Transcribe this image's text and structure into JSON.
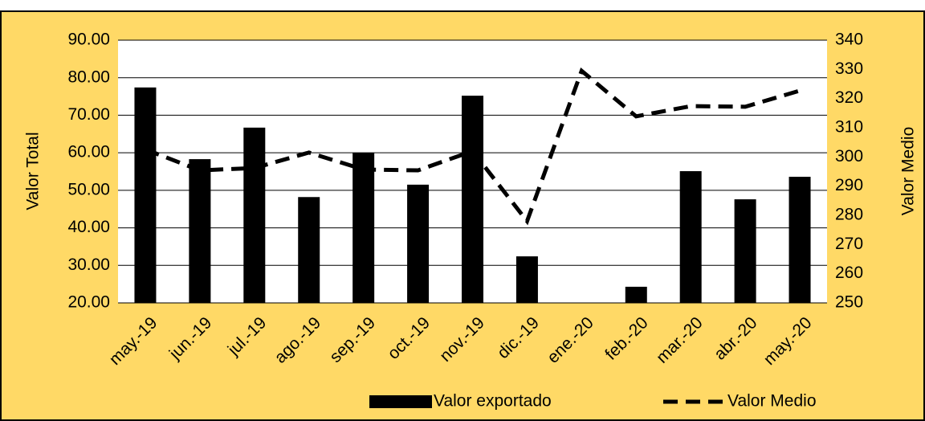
{
  "chart_data": {
    "type": "bar_line",
    "categories": [
      "may.-19",
      "jun.-19",
      "jul.-19",
      "ago.-19",
      "sep.-19",
      "oct.-19",
      "nov.-19",
      "dic.-19",
      "ene.-20",
      "feb.-20",
      "mar.-20",
      "abr.-20",
      "may.-20"
    ],
    "series": [
      {
        "name": "Valor exportado",
        "type": "bar",
        "color": "#000000",
        "values": [
          77.4,
          58.3,
          66.7,
          48.2,
          60.0,
          51.5,
          75.2,
          32.4,
          null,
          24.3,
          55.1,
          47.6,
          53.6
        ]
      },
      {
        "name": "Valor Medio",
        "type": "line",
        "axis": "y2",
        "color": "#000000",
        "dashed": true,
        "values": [
          302.6,
          295.4,
          296.2,
          301.5,
          295.7,
          295.4,
          302.0,
          278.0,
          329.5,
          313.9,
          317.4,
          317.2,
          322.7
        ]
      }
    ],
    "ylabel": "Valor Total",
    "y2label": "Valor Medio",
    "ylim": [
      20,
      90
    ],
    "yticks": [
      {
        "value": 20,
        "label": "20.00"
      },
      {
        "value": 30,
        "label": "30.00"
      },
      {
        "value": 40,
        "label": "40.00"
      },
      {
        "value": 50,
        "label": "50.00"
      },
      {
        "value": 60,
        "label": "60.00"
      },
      {
        "value": 70,
        "label": "70.00"
      },
      {
        "value": 80,
        "label": "80.00"
      },
      {
        "value": 90,
        "label": "90.00"
      }
    ],
    "y2lim": [
      250,
      340
    ],
    "y2ticks": [
      250,
      260,
      270,
      280,
      290,
      300,
      310,
      320,
      330,
      340
    ],
    "grid": true,
    "legend": "bottom"
  }
}
